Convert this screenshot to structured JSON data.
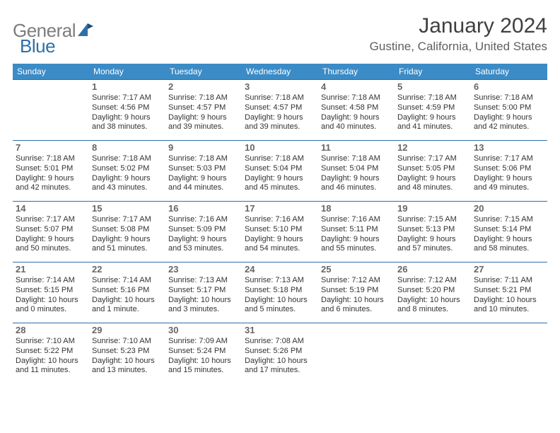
{
  "brand": {
    "text1": "General",
    "text2": "Blue"
  },
  "title": "January 2024",
  "location": "Gustine, California, United States",
  "colors": {
    "header_bg": "#3b8bc6",
    "row_border": "#2f6fa7",
    "brand_gray": "#7d7d7d",
    "brand_blue": "#2f6fa7"
  },
  "day_headers": [
    "Sunday",
    "Monday",
    "Tuesday",
    "Wednesday",
    "Thursday",
    "Friday",
    "Saturday"
  ],
  "weeks": [
    [
      {
        "num": "",
        "sr": "",
        "ss": "",
        "dl": ""
      },
      {
        "num": "1",
        "sr": "Sunrise: 7:17 AM",
        "ss": "Sunset: 4:56 PM",
        "dl": "Daylight: 9 hours and 38 minutes."
      },
      {
        "num": "2",
        "sr": "Sunrise: 7:18 AM",
        "ss": "Sunset: 4:57 PM",
        "dl": "Daylight: 9 hours and 39 minutes."
      },
      {
        "num": "3",
        "sr": "Sunrise: 7:18 AM",
        "ss": "Sunset: 4:57 PM",
        "dl": "Daylight: 9 hours and 39 minutes."
      },
      {
        "num": "4",
        "sr": "Sunrise: 7:18 AM",
        "ss": "Sunset: 4:58 PM",
        "dl": "Daylight: 9 hours and 40 minutes."
      },
      {
        "num": "5",
        "sr": "Sunrise: 7:18 AM",
        "ss": "Sunset: 4:59 PM",
        "dl": "Daylight: 9 hours and 41 minutes."
      },
      {
        "num": "6",
        "sr": "Sunrise: 7:18 AM",
        "ss": "Sunset: 5:00 PM",
        "dl": "Daylight: 9 hours and 42 minutes."
      }
    ],
    [
      {
        "num": "7",
        "sr": "Sunrise: 7:18 AM",
        "ss": "Sunset: 5:01 PM",
        "dl": "Daylight: 9 hours and 42 minutes."
      },
      {
        "num": "8",
        "sr": "Sunrise: 7:18 AM",
        "ss": "Sunset: 5:02 PM",
        "dl": "Daylight: 9 hours and 43 minutes."
      },
      {
        "num": "9",
        "sr": "Sunrise: 7:18 AM",
        "ss": "Sunset: 5:03 PM",
        "dl": "Daylight: 9 hours and 44 minutes."
      },
      {
        "num": "10",
        "sr": "Sunrise: 7:18 AM",
        "ss": "Sunset: 5:04 PM",
        "dl": "Daylight: 9 hours and 45 minutes."
      },
      {
        "num": "11",
        "sr": "Sunrise: 7:18 AM",
        "ss": "Sunset: 5:04 PM",
        "dl": "Daylight: 9 hours and 46 minutes."
      },
      {
        "num": "12",
        "sr": "Sunrise: 7:17 AM",
        "ss": "Sunset: 5:05 PM",
        "dl": "Daylight: 9 hours and 48 minutes."
      },
      {
        "num": "13",
        "sr": "Sunrise: 7:17 AM",
        "ss": "Sunset: 5:06 PM",
        "dl": "Daylight: 9 hours and 49 minutes."
      }
    ],
    [
      {
        "num": "14",
        "sr": "Sunrise: 7:17 AM",
        "ss": "Sunset: 5:07 PM",
        "dl": "Daylight: 9 hours and 50 minutes."
      },
      {
        "num": "15",
        "sr": "Sunrise: 7:17 AM",
        "ss": "Sunset: 5:08 PM",
        "dl": "Daylight: 9 hours and 51 minutes."
      },
      {
        "num": "16",
        "sr": "Sunrise: 7:16 AM",
        "ss": "Sunset: 5:09 PM",
        "dl": "Daylight: 9 hours and 53 minutes."
      },
      {
        "num": "17",
        "sr": "Sunrise: 7:16 AM",
        "ss": "Sunset: 5:10 PM",
        "dl": "Daylight: 9 hours and 54 minutes."
      },
      {
        "num": "18",
        "sr": "Sunrise: 7:16 AM",
        "ss": "Sunset: 5:11 PM",
        "dl": "Daylight: 9 hours and 55 minutes."
      },
      {
        "num": "19",
        "sr": "Sunrise: 7:15 AM",
        "ss": "Sunset: 5:13 PM",
        "dl": "Daylight: 9 hours and 57 minutes."
      },
      {
        "num": "20",
        "sr": "Sunrise: 7:15 AM",
        "ss": "Sunset: 5:14 PM",
        "dl": "Daylight: 9 hours and 58 minutes."
      }
    ],
    [
      {
        "num": "21",
        "sr": "Sunrise: 7:14 AM",
        "ss": "Sunset: 5:15 PM",
        "dl": "Daylight: 10 hours and 0 minutes."
      },
      {
        "num": "22",
        "sr": "Sunrise: 7:14 AM",
        "ss": "Sunset: 5:16 PM",
        "dl": "Daylight: 10 hours and 1 minute."
      },
      {
        "num": "23",
        "sr": "Sunrise: 7:13 AM",
        "ss": "Sunset: 5:17 PM",
        "dl": "Daylight: 10 hours and 3 minutes."
      },
      {
        "num": "24",
        "sr": "Sunrise: 7:13 AM",
        "ss": "Sunset: 5:18 PM",
        "dl": "Daylight: 10 hours and 5 minutes."
      },
      {
        "num": "25",
        "sr": "Sunrise: 7:12 AM",
        "ss": "Sunset: 5:19 PM",
        "dl": "Daylight: 10 hours and 6 minutes."
      },
      {
        "num": "26",
        "sr": "Sunrise: 7:12 AM",
        "ss": "Sunset: 5:20 PM",
        "dl": "Daylight: 10 hours and 8 minutes."
      },
      {
        "num": "27",
        "sr": "Sunrise: 7:11 AM",
        "ss": "Sunset: 5:21 PM",
        "dl": "Daylight: 10 hours and 10 minutes."
      }
    ],
    [
      {
        "num": "28",
        "sr": "Sunrise: 7:10 AM",
        "ss": "Sunset: 5:22 PM",
        "dl": "Daylight: 10 hours and 11 minutes."
      },
      {
        "num": "29",
        "sr": "Sunrise: 7:10 AM",
        "ss": "Sunset: 5:23 PM",
        "dl": "Daylight: 10 hours and 13 minutes."
      },
      {
        "num": "30",
        "sr": "Sunrise: 7:09 AM",
        "ss": "Sunset: 5:24 PM",
        "dl": "Daylight: 10 hours and 15 minutes."
      },
      {
        "num": "31",
        "sr": "Sunrise: 7:08 AM",
        "ss": "Sunset: 5:26 PM",
        "dl": "Daylight: 10 hours and 17 minutes."
      },
      {
        "num": "",
        "sr": "",
        "ss": "",
        "dl": ""
      },
      {
        "num": "",
        "sr": "",
        "ss": "",
        "dl": ""
      },
      {
        "num": "",
        "sr": "",
        "ss": "",
        "dl": ""
      }
    ]
  ]
}
